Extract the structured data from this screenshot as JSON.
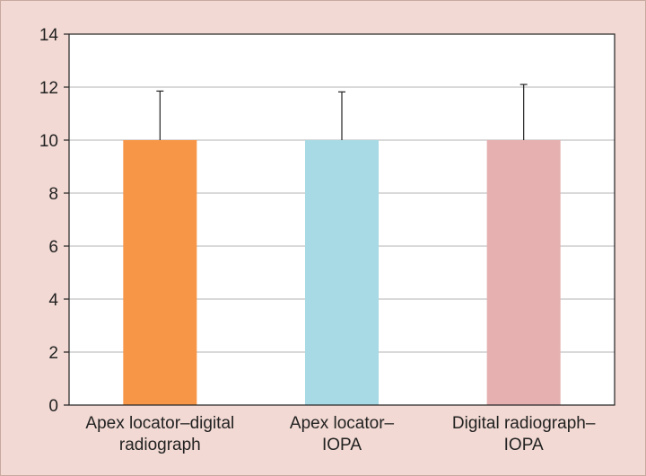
{
  "chart_data": {
    "type": "bar",
    "categories": [
      [
        "Apex locator–digital",
        "radiograph"
      ],
      [
        "Apex locator–",
        "IOPA"
      ],
      [
        "Digital radiograph–",
        "IOPA"
      ]
    ],
    "values": [
      10,
      10,
      10
    ],
    "error_bars": [
      1.85,
      1.82,
      2.1
    ],
    "bar_colors": [
      "#f79646",
      "#a8dae6",
      "#e6b0b0"
    ],
    "background_color": "#f2d9d3",
    "plot_background_color": "#ffffff",
    "ylim": [
      0,
      14
    ],
    "yticks": [
      0,
      2,
      4,
      6,
      8,
      10,
      12,
      14
    ],
    "grid": true,
    "title": "",
    "xlabel": "",
    "ylabel": ""
  }
}
